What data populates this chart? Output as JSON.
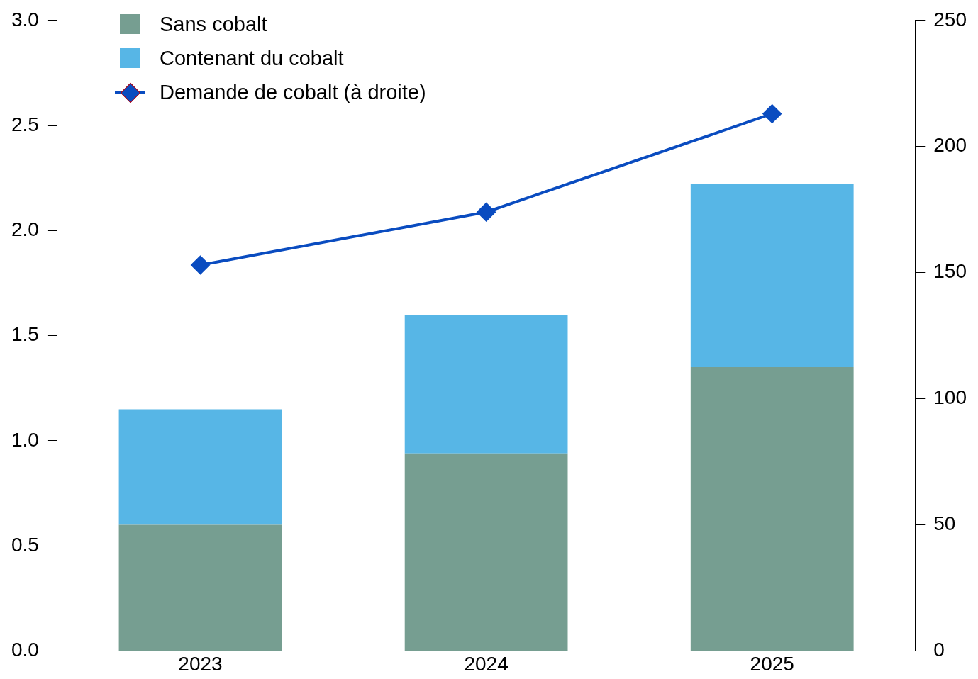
{
  "chart_data": {
    "type": "bar",
    "stacked": true,
    "categories": [
      "2023",
      "2024",
      "2025"
    ],
    "series": [
      {
        "name": "Sans cobalt",
        "color": "#769e91",
        "values": [
          0.6,
          0.94,
          1.35
        ]
      },
      {
        "name": "Contenant du cobalt",
        "color": "#57b6e6",
        "values": [
          0.55,
          0.66,
          0.87
        ]
      },
      {
        "name": "Demande de cobalt (à droite)",
        "type": "line",
        "axis": "y2",
        "color": "#0a4cc0",
        "marker": "diamond",
        "values": [
          153,
          174,
          213
        ]
      }
    ],
    "ylim": [
      0,
      3
    ],
    "yticks": [
      {
        "value": 0,
        "label": "0.0"
      },
      {
        "value": 0.5,
        "label": "0.5"
      },
      {
        "value": 1,
        "label": "1.0"
      },
      {
        "value": 1.5,
        "label": "1.5"
      },
      {
        "value": 2,
        "label": "2.0"
      },
      {
        "value": 2.5,
        "label": "2.5"
      },
      {
        "value": 3,
        "label": "3.0"
      }
    ],
    "y2lim": [
      0,
      250
    ],
    "y2ticks": [
      0,
      50,
      100,
      150,
      200,
      250
    ],
    "grid": false,
    "legend": "top left"
  }
}
